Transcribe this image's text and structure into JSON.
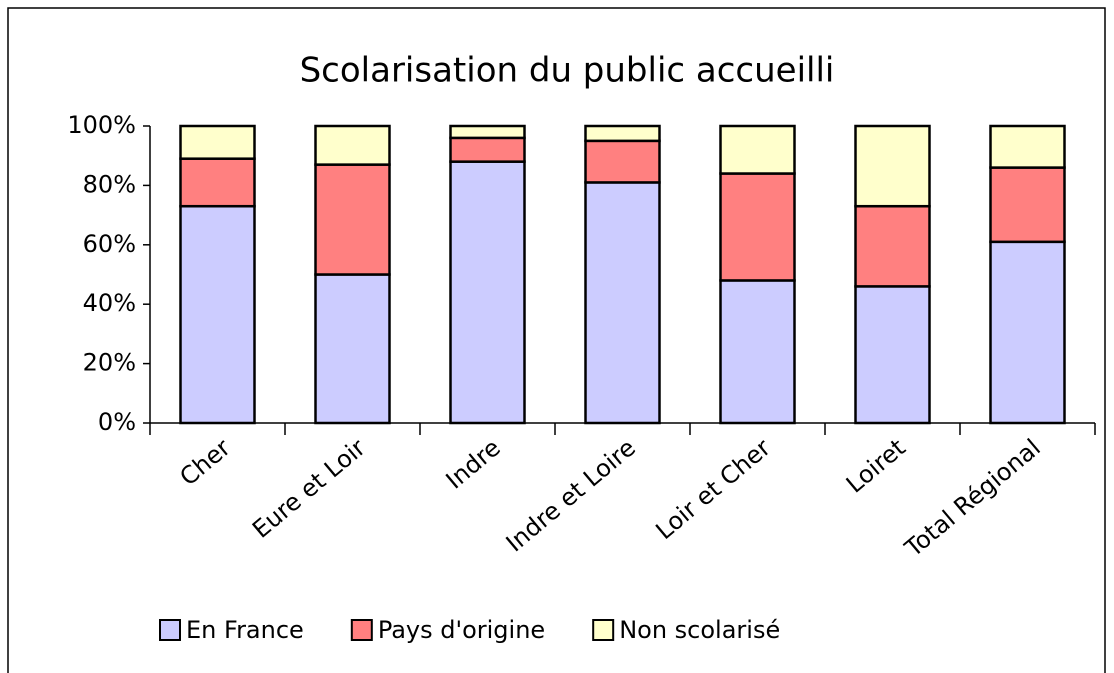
{
  "chart_data": {
    "type": "stacked_bar",
    "title": "Scolarisation du public accueilli",
    "categories": [
      "Cher",
      "Eure et Loir",
      "Indre",
      "Indre et Loire",
      "Loir et Cher",
      "Loiret",
      "Total Régional"
    ],
    "series": [
      {
        "name": "En France",
        "color": "#ccccff",
        "values": [
          73,
          50,
          88,
          81,
          48,
          46,
          61
        ]
      },
      {
        "name": "Pays d'origine",
        "color": "#ff8080",
        "values": [
          16,
          37,
          8,
          14,
          36,
          27,
          25
        ]
      },
      {
        "name": "Non scolarisé",
        "color": "#ffffcc",
        "values": [
          11,
          13,
          4,
          5,
          16,
          27,
          14
        ]
      }
    ],
    "ylim": [
      0,
      100
    ],
    "yticks": [
      {
        "value": 0,
        "label": "0%"
      },
      {
        "value": 20,
        "label": "20%"
      },
      {
        "value": 40,
        "label": "40%"
      },
      {
        "value": 60,
        "label": "60%"
      },
      {
        "value": 80,
        "label": "80%"
      },
      {
        "value": 100,
        "label": "100%"
      }
    ],
    "legend": "bottom"
  }
}
